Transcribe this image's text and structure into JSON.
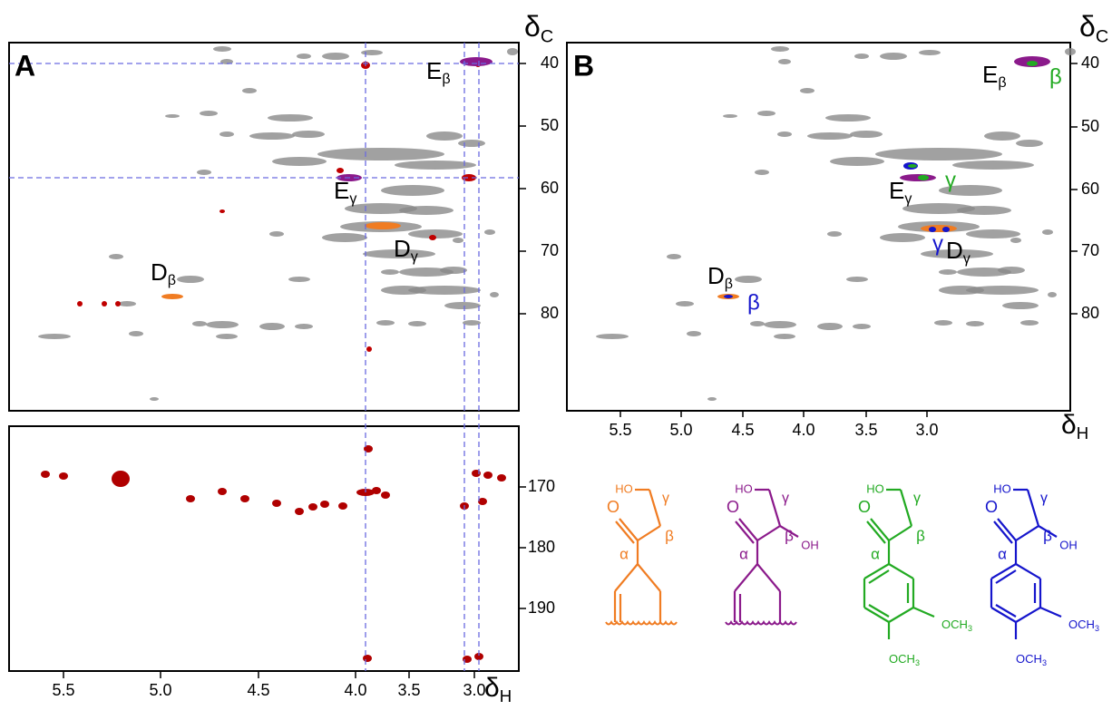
{
  "panels": [
    {
      "label": "A",
      "yticks": [
        "40",
        "50",
        "60",
        "70",
        "80"
      ],
      "ylabel": "δ",
      "ylabel_sub": "C",
      "annotations": [
        {
          "letter": "E",
          "sub": "β"
        },
        {
          "letter": "E",
          "sub": "γ"
        },
        {
          "letter": "D",
          "sub": "γ"
        },
        {
          "letter": "D",
          "sub": "β"
        }
      ],
      "lower": {
        "yticks": [
          "170",
          "180",
          "190"
        ],
        "xticks": [
          "5.5",
          "5.0",
          "4.5",
          "4.0",
          "3.5",
          "3.0"
        ],
        "xlabel": "δ",
        "xlabel_sub": "H"
      }
    },
    {
      "label": "B",
      "yticks": [
        "40",
        "50",
        "60",
        "70",
        "80"
      ],
      "ylabel": "δ",
      "ylabel_sub": "C",
      "xticks": [
        "5.5",
        "5.0",
        "4.5",
        "4.0",
        "3.5",
        "3.0"
      ],
      "xlabel": "δ",
      "xlabel_sub": "H",
      "annotations": [
        {
          "letter": "E",
          "sub": "β"
        },
        {
          "letter": "E",
          "sub": "γ"
        },
        {
          "letter": "D",
          "sub": "γ"
        },
        {
          "letter": "D",
          "sub": "β"
        }
      ],
      "greek": [
        "β",
        "γ",
        "γ",
        "β"
      ]
    }
  ],
  "structures": [
    {
      "color": "#f07c22",
      "ho": "HO",
      "gamma": "γ",
      "beta": "β",
      "alpha": "α",
      "o": "O"
    },
    {
      "color": "#8b1a8b",
      "ho": "HO",
      "gamma": "γ",
      "beta": "β",
      "alpha": "α",
      "o": "O",
      "oh": "OH"
    },
    {
      "color": "#22aa22",
      "ho": "HO",
      "gamma": "γ",
      "beta": "β",
      "alpha": "α",
      "o": "O",
      "och3": [
        "OCH",
        "OCH"
      ],
      "sub3": "3"
    },
    {
      "color": "#1515cc",
      "ho": "HO",
      "gamma": "γ",
      "beta": "β",
      "alpha": "α",
      "o": "O",
      "oh": "OH",
      "och3": [
        "OCH",
        "OCH"
      ],
      "sub3": "3"
    }
  ]
}
